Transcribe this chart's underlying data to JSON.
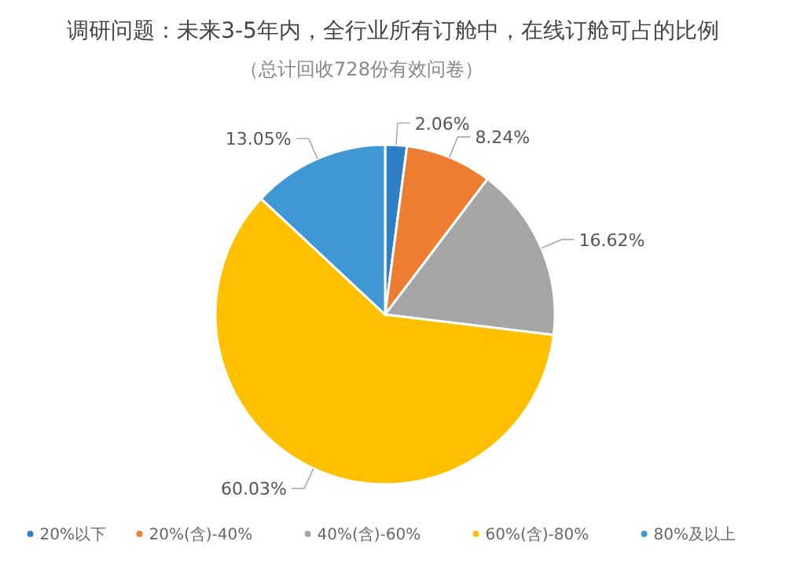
{
  "chart_data": {
    "type": "pie",
    "title": "调研问题：未来3-5年内，全行业所有订舱中，在线订舱可占的比例",
    "subtitle": "（总计回收728份有效问卷）",
    "categories": [
      "20%以下",
      "20%(含)-40%",
      "40%(含)-60%",
      "60%(含)-80%",
      "80%及以上"
    ],
    "values": [
      2.06,
      8.24,
      16.62,
      60.03,
      13.05
    ],
    "value_labels": [
      "2.06%",
      "8.24%",
      "16.62%",
      "60.03%",
      "13.05%"
    ],
    "colors": [
      "#2e7fc4",
      "#ed7d31",
      "#a5a5a5",
      "#ffc000",
      "#3f97d3"
    ],
    "legend": "bottom"
  }
}
